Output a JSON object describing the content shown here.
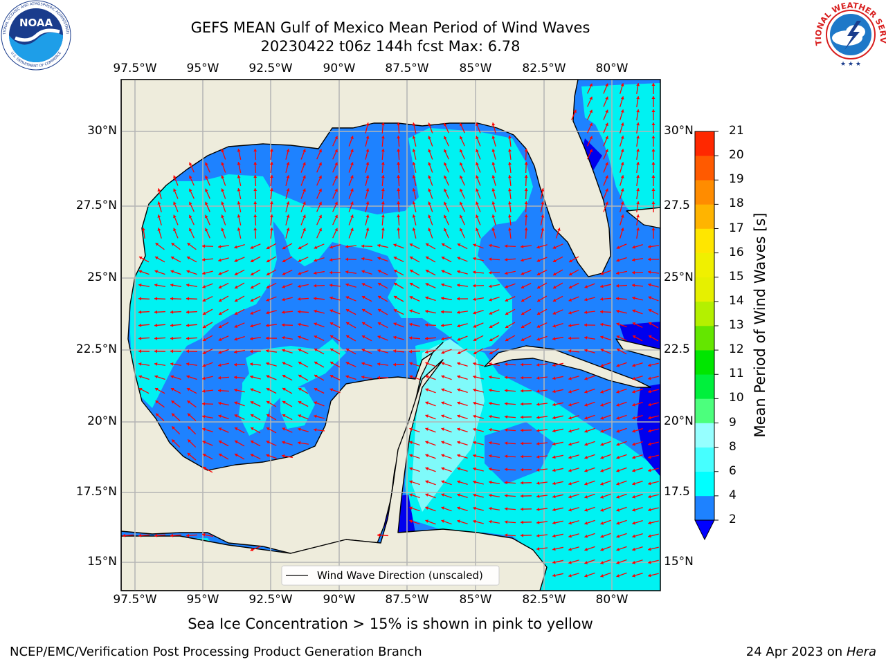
{
  "title": {
    "line1": "GEFS MEAN Gulf of Mexico Mean Period of Wind Waves",
    "line2": "20230422 t06z 144h fcst   Max: 6.78"
  },
  "noaa_logo": {
    "name": "NOAA",
    "ring_text_top": "NATIONAL OCEANIC AND ATMOSPHERIC ADMINISTRATION",
    "ring_text_bottom": "U.S. DEPARTMENT OF COMMERCE"
  },
  "nws_logo": {
    "ring_text": "NATIONAL WEATHER SERVICE"
  },
  "map": {
    "lon_ticks": [
      "97.5°W",
      "95°W",
      "92.5°W",
      "90°W",
      "87.5°W",
      "85°W",
      "82.5°W",
      "80°W"
    ],
    "lat_ticks_left": [
      "30°N",
      "27.5°N",
      "25°N",
      "22.5°N",
      "20°N",
      "17.5°N",
      "15°N"
    ],
    "lat_ticks_right": [
      "30°N",
      "27.5",
      "25°N",
      "22.5",
      "20°N",
      "17.5",
      "15°N"
    ],
    "legend_label": "Wind Wave Direction (unscaled)",
    "extent": {
      "lon": [
        -98,
        -78.5
      ],
      "lat": [
        14,
        31.8
      ]
    },
    "colors": {
      "land": "#eeecdc",
      "grid": "#b4b4b4",
      "coast": "#000000",
      "arrow": "#ff0000",
      "class_lt2": "#0000ee",
      "class_2_4": "#1e82ff",
      "class_4_6": "#00f2f2",
      "class_6_8": "#7ffafa"
    }
  },
  "colorbar": {
    "label": "Mean Period of Wind Waves [s]",
    "ticks": [
      "2",
      "4",
      "6",
      "8",
      "9",
      "10",
      "11",
      "12",
      "13",
      "14",
      "15",
      "16",
      "17",
      "18",
      "19",
      "20",
      "21"
    ],
    "colors": [
      "#1e82ff",
      "#00ffff",
      "#46ffff",
      "#96ffff",
      "#4cff7d",
      "#00f03c",
      "#00e600",
      "#64e600",
      "#b4f000",
      "#e6f000",
      "#f0f000",
      "#ffe600",
      "#ffb400",
      "#ff8c00",
      "#ff5a00",
      "#ff2800"
    ],
    "under_color": "#0000ff"
  },
  "footer": {
    "note": "Sea Ice Concentration > 15% is shown in pink to yellow",
    "credit": "NCEP/EMC/Verification Post Processing Product Generation Branch",
    "date_prefix": "24 Apr 2023 on ",
    "host": "Hera"
  }
}
